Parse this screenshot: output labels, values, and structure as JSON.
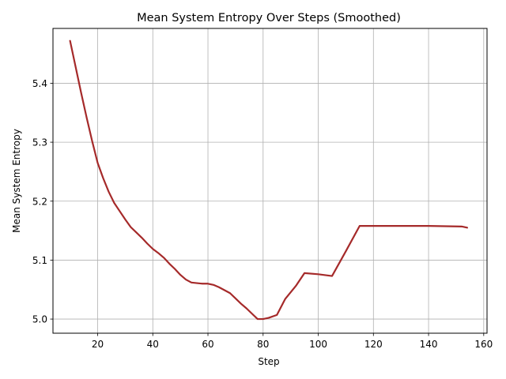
{
  "chart_data": {
    "type": "line",
    "title": "Mean System Entropy Over Steps (Smoothed)",
    "xlabel": "Step",
    "ylabel": "Mean System Entropy",
    "xlim": [
      3.8,
      161.2
    ],
    "ylim": [
      4.976,
      5.493
    ],
    "xticks": [
      20,
      40,
      60,
      80,
      100,
      120,
      140,
      160
    ],
    "yticks": [
      5.0,
      5.1,
      5.2,
      5.3,
      5.4
    ],
    "xtick_labels": [
      "20",
      "40",
      "60",
      "80",
      "100",
      "120",
      "140",
      "160"
    ],
    "ytick_labels": [
      "5.0",
      "5.1",
      "5.2",
      "5.3",
      "5.4"
    ],
    "grid": true,
    "legend": "none",
    "series": [
      {
        "color": "#a52a2a",
        "x": [
          10,
          12,
          14,
          16,
          18,
          20,
          22,
          24,
          26,
          28,
          30,
          32,
          34,
          36,
          38,
          40,
          42,
          44,
          46,
          48,
          50,
          52,
          54,
          56,
          58,
          60,
          62,
          64,
          66,
          68,
          70,
          72,
          74,
          76,
          78,
          80,
          82,
          85,
          88,
          92,
          95,
          100,
          105,
          110,
          115,
          120,
          130,
          140,
          152,
          154
        ],
        "values": [
          5.472,
          5.428,
          5.384,
          5.342,
          5.302,
          5.265,
          5.239,
          5.216,
          5.197,
          5.183,
          5.169,
          5.156,
          5.147,
          5.138,
          5.128,
          5.119,
          5.112,
          5.104,
          5.094,
          5.085,
          5.075,
          5.067,
          5.062,
          5.061,
          5.06,
          5.06,
          5.058,
          5.054,
          5.049,
          5.044,
          5.035,
          5.026,
          5.018,
          5.009,
          5.0,
          5.0,
          5.002,
          5.007,
          5.034,
          5.057,
          5.078,
          5.076,
          5.073,
          5.115,
          5.158,
          5.158,
          5.158,
          5.158,
          5.157,
          5.155
        ]
      }
    ]
  }
}
